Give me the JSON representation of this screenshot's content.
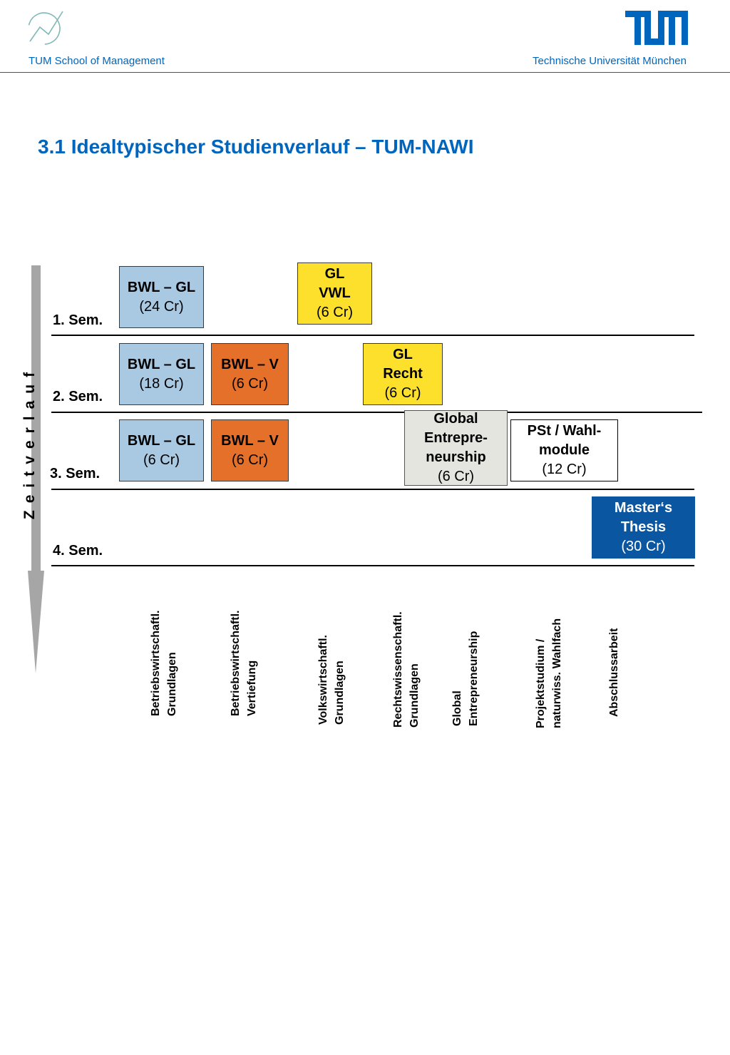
{
  "header": {
    "left_label": "TUM School of Management",
    "right_label": "Technische Universität München",
    "accent_color": "#0065bd",
    "left_logo_icon": "tum-school-of-management-logo-icon",
    "right_logo_icon": "tum-logo-icon"
  },
  "title": "3.1 Idealtypischer Studienverlauf – TUM-NAWI",
  "timeline_label": "Zeitverlauf",
  "semesters": [
    "1. Sem.",
    "2. Sem.",
    "3. Sem.",
    "4. Sem."
  ],
  "modules": {
    "sem1_bwl_gl": {
      "name": "BWL – GL",
      "credits": "(24 Cr)"
    },
    "sem1_gl_vwl": {
      "name_line1": "GL",
      "name_line2": "VWL",
      "credits": "(6 Cr)"
    },
    "sem2_bwl_gl": {
      "name": "BWL – GL",
      "credits": "(18 Cr)"
    },
    "sem2_bwl_v": {
      "name": "BWL – V",
      "credits": "(6 Cr)"
    },
    "sem2_gl_recht": {
      "name_line1": "GL",
      "name_line2": "Recht",
      "credits": "(6 Cr)"
    },
    "sem3_bwl_gl": {
      "name": "BWL – GL",
      "credits": "(6 Cr)"
    },
    "sem3_bwl_v": {
      "name": "BWL – V",
      "credits": "(6 Cr)"
    },
    "sem3_global": {
      "name_line1": "Global",
      "name_line2": "Entrepre-",
      "name_line3": "neurship",
      "credits": "(6 Cr)"
    },
    "sem3_pst": {
      "name_line1": "PSt / Wahl-",
      "name_line2": "module",
      "credits": "(12 Cr)"
    },
    "sem4_thesis": {
      "name_line1": "Master‘s",
      "name_line2": "Thesis",
      "credits": "(30 Cr)"
    }
  },
  "legend": [
    {
      "line1": "Betriebswirtschaftl.",
      "line2": "Grundlagen",
      "color": "#a9c9e3"
    },
    {
      "line1": "Betriebswirtschaftl.",
      "line2": "Vertiefung",
      "color": "#e5702a"
    },
    {
      "line1": "Volkswirtschaftl.",
      "line2": "Grundlagen",
      "color": "#fde02c"
    },
    {
      "line1": "Rechtswissenschaftl.",
      "line2": "Grundlagen",
      "color": "#fde02c"
    },
    {
      "line1": "Global",
      "line2": "Entrepreneurship",
      "color": "#e5e5e0"
    },
    {
      "line1": "Projektstudium /",
      "line2": "naturwiss. Wahlfach",
      "color": "#ffffff"
    },
    {
      "line1": "Abschlussarbeit",
      "line2": "",
      "color": "#0b56a0"
    }
  ]
}
